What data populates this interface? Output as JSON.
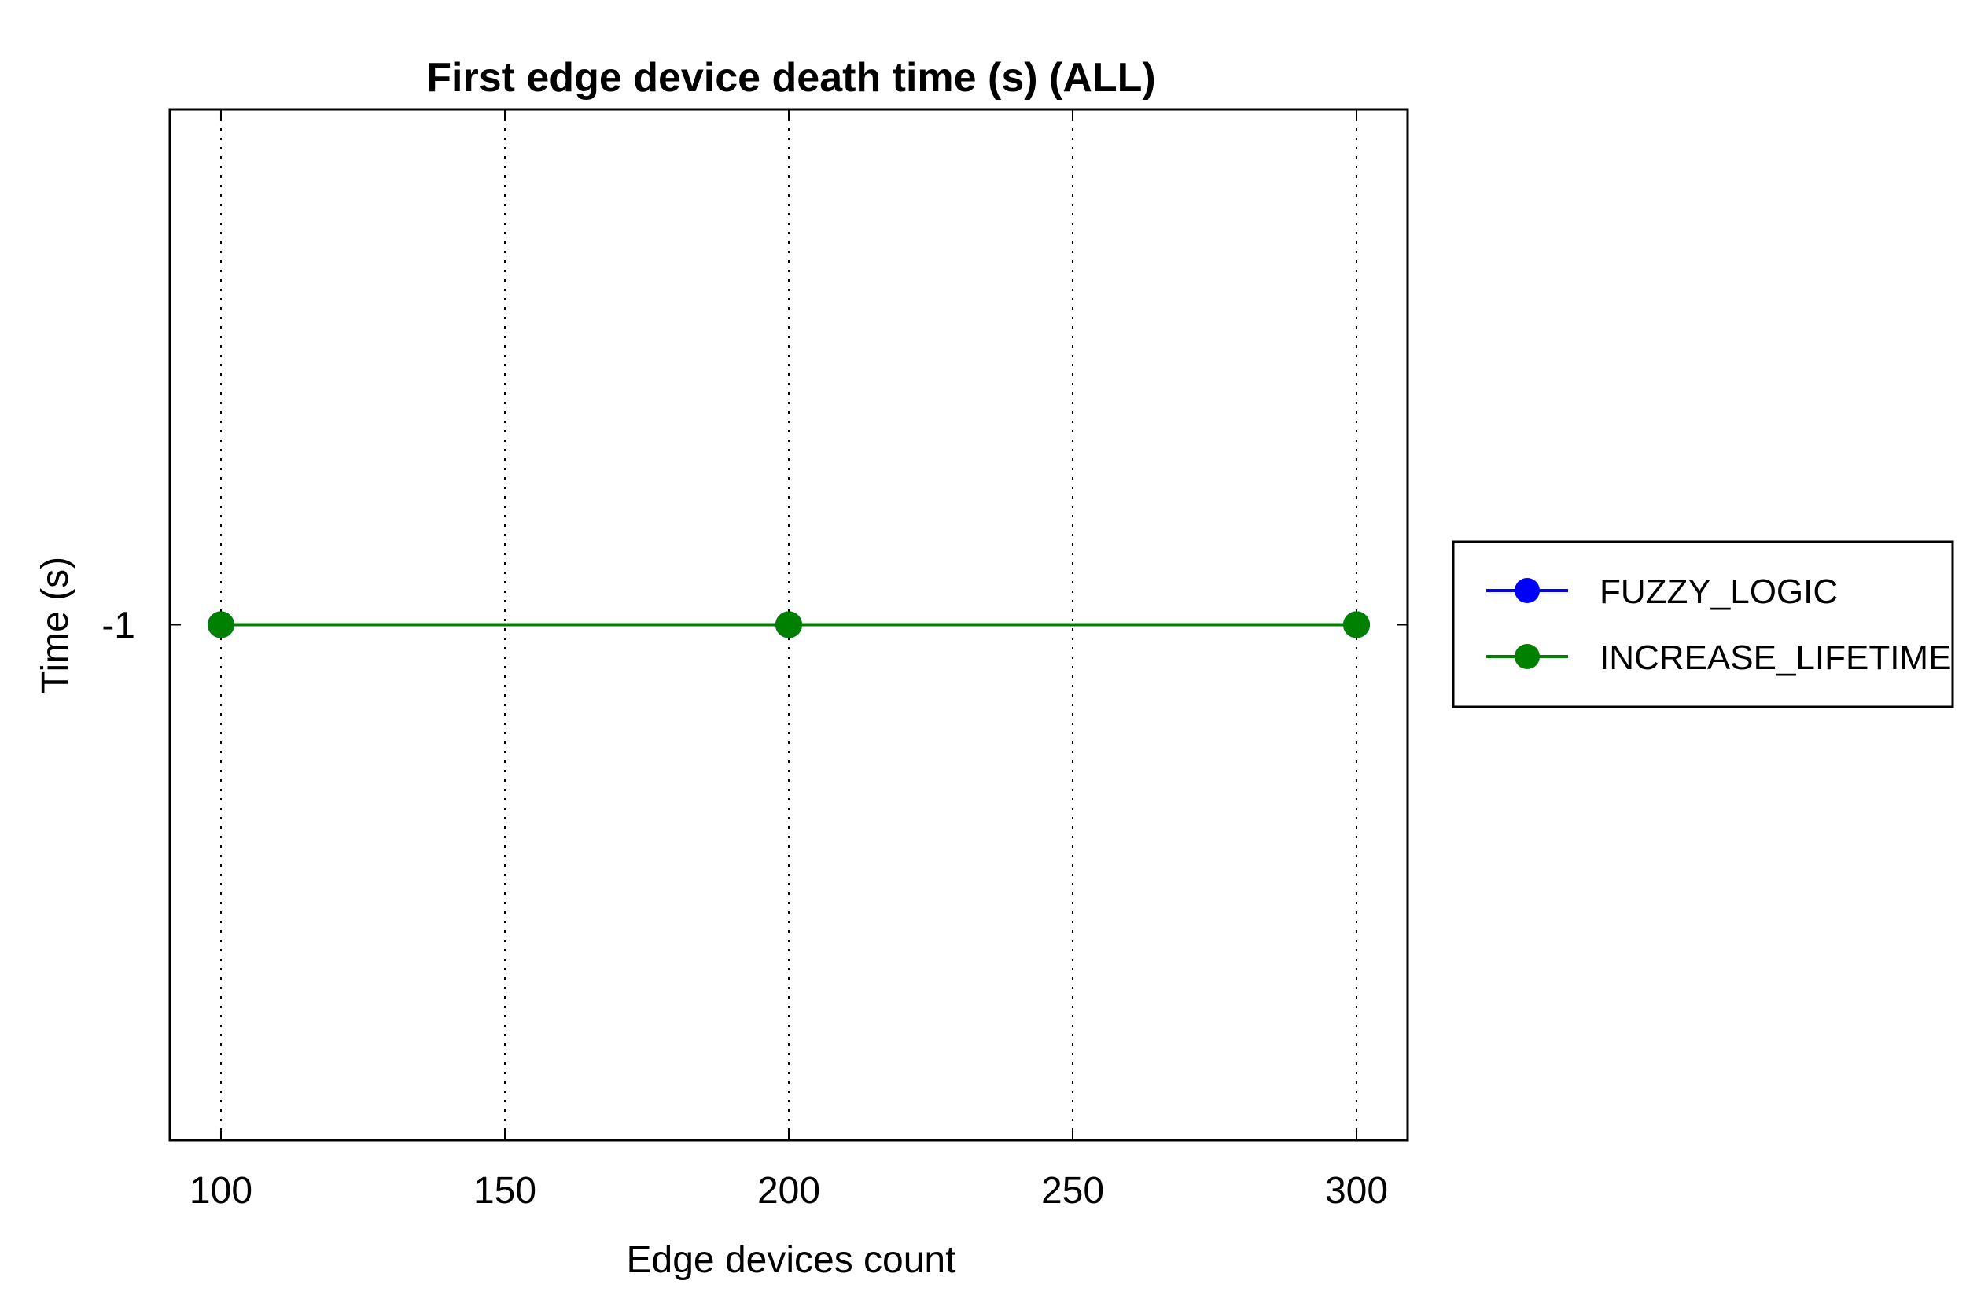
{
  "chart_data": {
    "type": "line",
    "title": "First edge device death time (s) (ALL)",
    "xlabel": "Edge devices count",
    "ylabel": "Time (s)",
    "xlim": [
      91,
      309
    ],
    "ylim": [
      -1.5,
      -0.5
    ],
    "x_ticks": [
      100,
      150,
      200,
      250,
      300
    ],
    "y_ticks": [
      -1
    ],
    "x_tick_labels": [
      "100",
      "150",
      "200",
      "250",
      "300"
    ],
    "y_tick_labels": [
      "-1"
    ],
    "grid": "vertical dotted",
    "legend_placement": "outside right",
    "series": [
      {
        "name": "FUZZY_LOGIC",
        "color": "#0000ff",
        "marker": "circle",
        "x": [
          100,
          200,
          300
        ],
        "y": [
          -1,
          -1,
          -1
        ]
      },
      {
        "name": "INCREASE_LIFETIME",
        "color": "#008000",
        "marker": "circle",
        "x": [
          100,
          200,
          300
        ],
        "y": [
          -1,
          -1,
          -1
        ]
      }
    ]
  }
}
